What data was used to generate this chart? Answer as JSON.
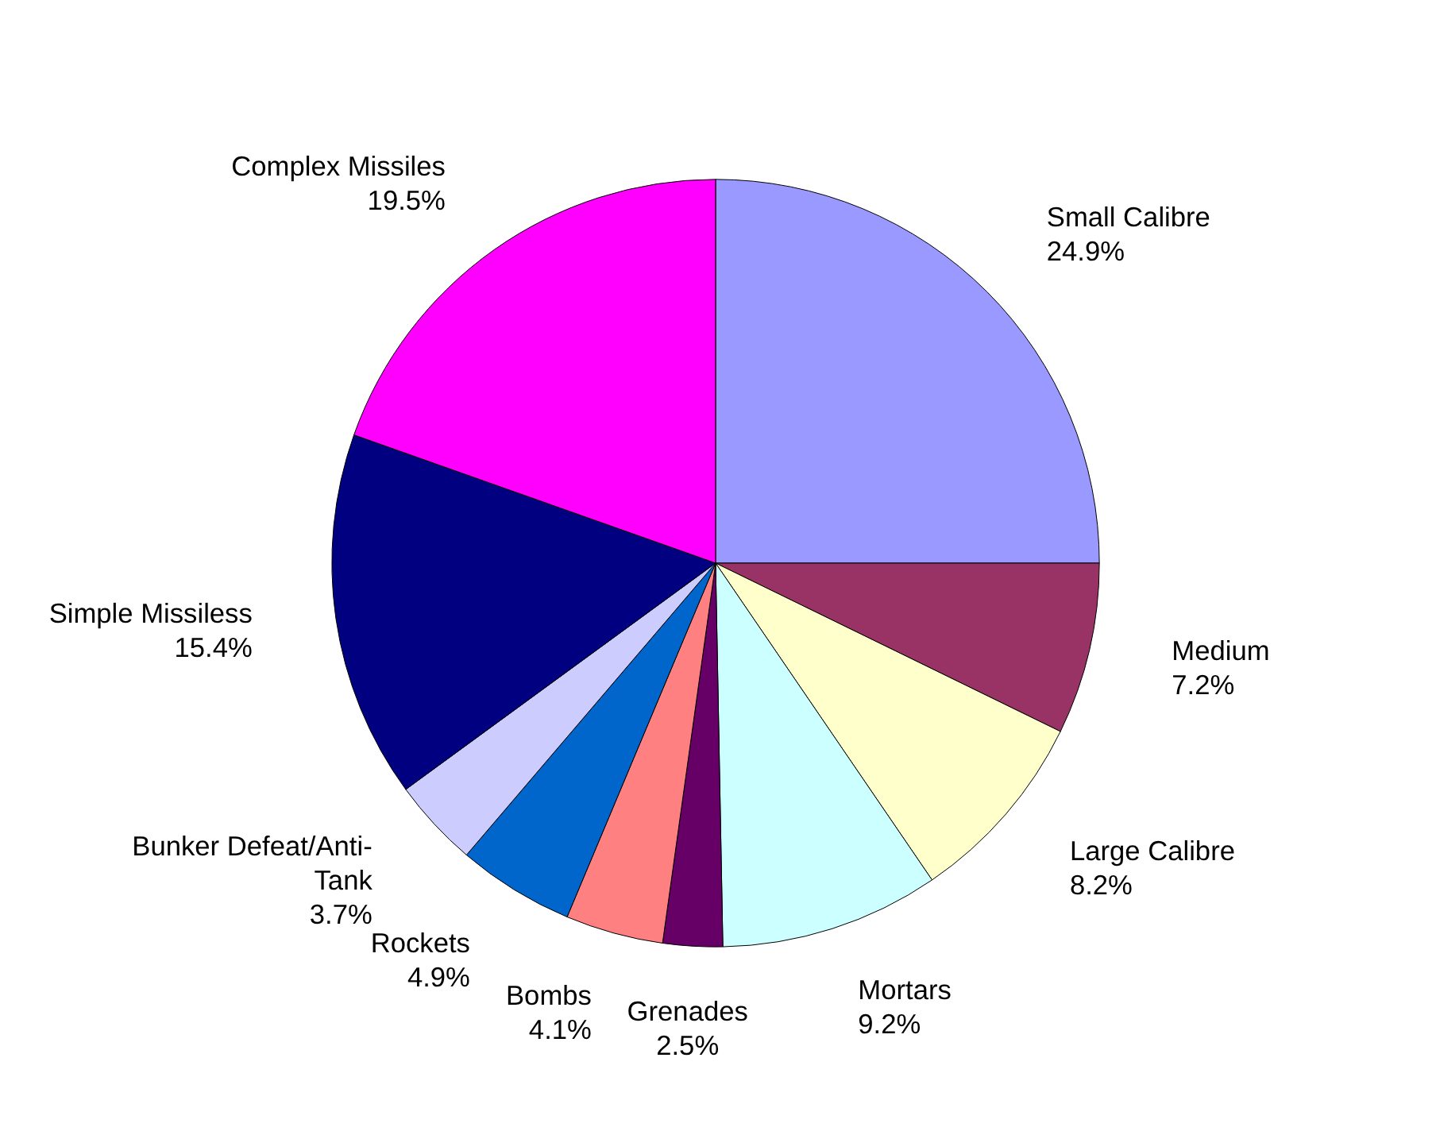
{
  "chart_data": {
    "type": "pie",
    "categories": [
      "Small Calibre",
      "Medium",
      "Large Calibre",
      "Mortars",
      "Grenades",
      "Bombs",
      "Rockets",
      "Bunker Defeat/Anti-Tank",
      "Simple Missiless",
      "Complex Missiles"
    ],
    "values": [
      24.9,
      7.2,
      8.2,
      9.2,
      2.5,
      4.1,
      4.9,
      3.7,
      15.4,
      19.5
    ],
    "colors": [
      "#9999ff",
      "#993366",
      "#ffffcc",
      "#ccffff",
      "#660066",
      "#ff8080",
      "#0066cc",
      "#ccccff",
      "#000080",
      "#ff00ff"
    ],
    "value_labels": [
      "24.9%",
      "7.2%",
      "8.2%",
      "9.2%",
      "2.5%",
      "4.1%",
      "4.9%",
      "3.7%",
      "15.4%",
      "19.5%"
    ]
  }
}
